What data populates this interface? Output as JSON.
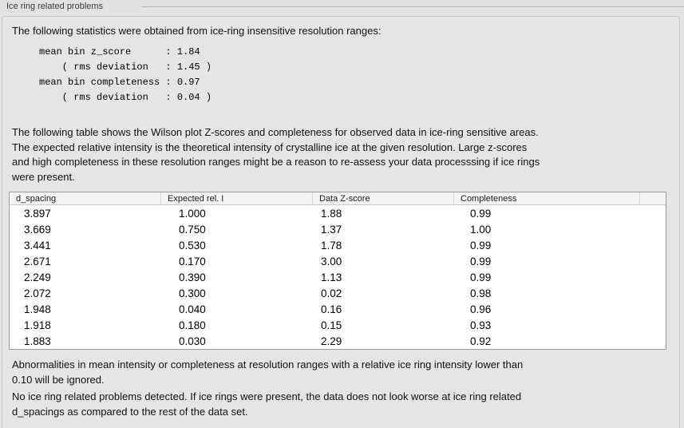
{
  "panel": {
    "title": "Ice ring related problems",
    "intro": "The following statistics were obtained from ice-ring insensitive resolution ranges:",
    "stats_block": "mean bin z_score      : 1.84\n    ( rms deviation   : 1.45 )\nmean bin completeness : 0.97\n    ( rms deviation   : 0.04 )",
    "table_description": "The following table shows the Wilson plot Z-scores and completeness for observed data in ice-ring sensitive areas.\nThe expected relative intensity is the theoretical intensity of crystalline ice at the given resolution. Large z-scores\nand high completeness in these resolution ranges might be a reason to re-assess your data processsing if ice rings\nwere present.",
    "note_ignore": "Abnormalities in mean intensity or completeness at resolution ranges with a relative ice ring intensity lower than\n0.10 will be ignored.",
    "conclusion": "No ice ring related problems detected. If ice rings were present, the data does not look worse at ice ring related\nd_spacings as compared to the rest of the data set."
  },
  "stats": {
    "mean_bin_z_score": "1.84",
    "z_score_rms_deviation": "1.45",
    "mean_bin_completeness": "0.97",
    "completeness_rms_deviation": "0.04"
  },
  "table": {
    "columns": [
      "d_spacing",
      "Expected rel. I",
      "Data Z-score",
      "Completeness"
    ],
    "rows": [
      [
        "3.897",
        "1.000",
        "1.88",
        "0.99"
      ],
      [
        "3.669",
        "0.750",
        "1.37",
        "1.00"
      ],
      [
        "3.441",
        "0.530",
        "1.78",
        "0.99"
      ],
      [
        "2.671",
        "0.170",
        "3.00",
        "0.99"
      ],
      [
        "2.249",
        "0.390",
        "1.13",
        "0.99"
      ],
      [
        "2.072",
        "0.300",
        "0.02",
        "0.98"
      ],
      [
        "1.948",
        "0.040",
        "0.16",
        "0.96"
      ],
      [
        "1.918",
        "0.180",
        "0.15",
        "0.93"
      ],
      [
        "1.883",
        "0.030",
        "2.29",
        "0.92"
      ]
    ]
  },
  "colors": {
    "page_bg": "#e2e2e2",
    "panel_bg": "#e5e5e3",
    "panel_border": "#c6c6c5",
    "groupbox_line": "#b5b5b5",
    "label_text": "#3c3c3c",
    "body_text": "#111111",
    "table_border": "#9a9a9a",
    "table_header_bg": "#f4f4f4",
    "table_header_separator": "#d8d8d8",
    "table_row_bg": "#ffffff"
  }
}
